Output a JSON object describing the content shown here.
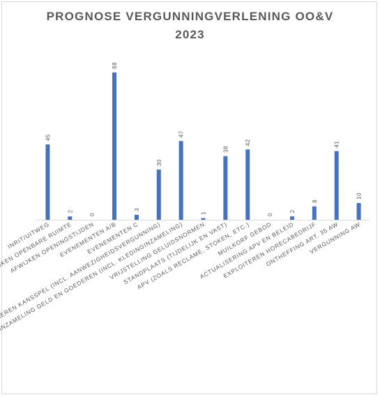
{
  "chart_data": {
    "type": "bar",
    "title_line1": "PROGNOSE VERGUNNINGVERLENING OO&V",
    "title_line2": "2023",
    "categories": [
      "INRIT/UITWEG",
      "AFWIJKEN OPENBARE RUIMTE",
      "AFWIJKEN OPENINGSTIJDEN",
      "EVENEMENTEN A/B",
      "EVENEMENTEN C",
      "ORGANISEREN KANSSPEL (INCL. AANWEZIGHEIDSVERGUNNING)",
      "INZAMELING GELD EN GOEDEREN (INCL. KLEDINGINZAMELING)",
      "VRIJSTELLING GELUIDSNORMEN",
      "STANDPLAATS (TIJDELIJK EN VAST)",
      "APV (ZOALS RECLAME, STOKEN, ETC.)",
      "MUILKORF GEBOD",
      "ACTUALISERING APV EN BELEID",
      "EXPLOITEREN HORECABEDRIJF",
      "ONTHEFFING ART. 35 AW",
      "VERGUNNING AW"
    ],
    "values": [
      45,
      2,
      0,
      88,
      3,
      30,
      47,
      1,
      38,
      42,
      0,
      2,
      8,
      41,
      10
    ],
    "ylim": [
      0,
      100
    ],
    "bar_color": "#4472c4",
    "data_labels": true,
    "grid": false,
    "legend": "none"
  }
}
